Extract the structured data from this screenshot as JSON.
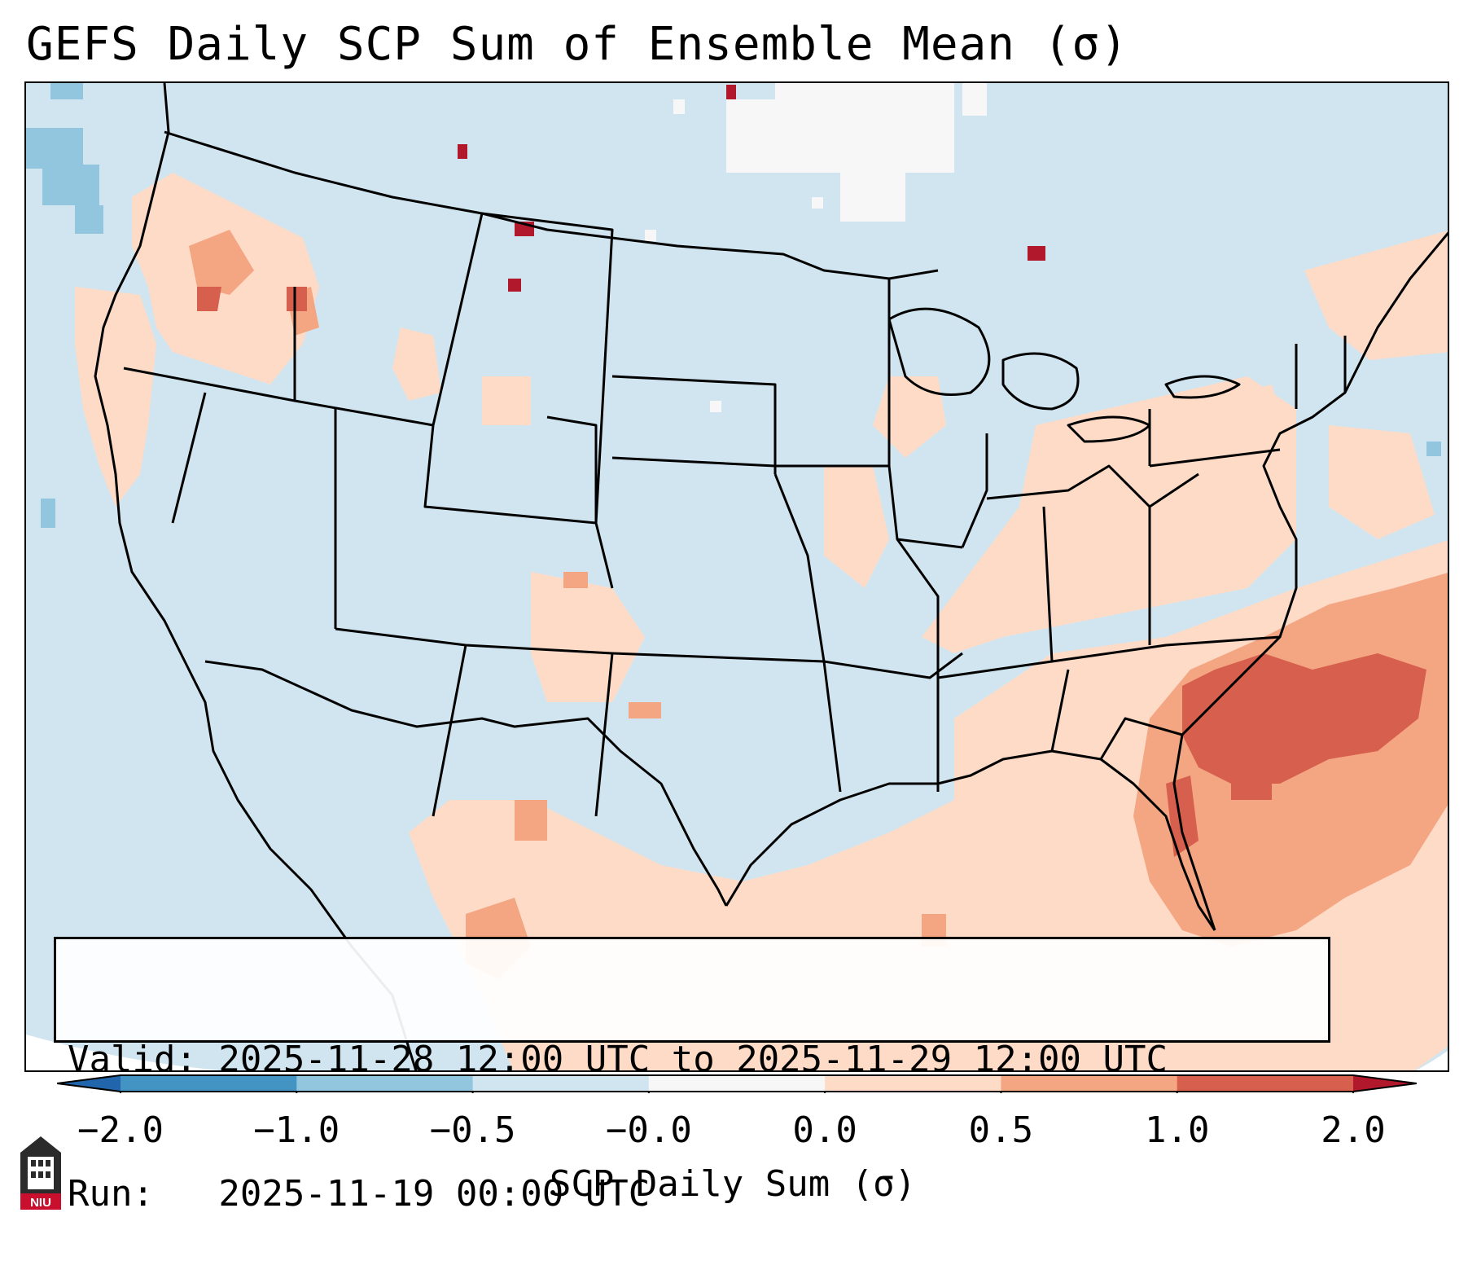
{
  "title": "GEFS Daily SCP Sum of Ensemble Mean (σ)",
  "info": {
    "valid_line": "Valid: 2025-11-28 12:00 UTC to 2025-11-29 12:00 UTC",
    "run_line": "Run:   2025-11-19 00:00 UTC"
  },
  "colorbar": {
    "label": "SCP Daily Sum (σ)",
    "ticks": [
      "−2.0",
      "−1.0",
      "−0.5",
      "−0.0",
      "0.0",
      "0.5",
      "1.0",
      "2.0"
    ],
    "colors": [
      "#4393c3",
      "#92c5de",
      "#d1e5f0",
      "#f7f7f7",
      "#fddbc7",
      "#f4a582",
      "#d6604d"
    ],
    "extend_low_color": "#2166ac",
    "extend_high_color": "#b2182b"
  },
  "map": {
    "background_color": "#d1e5f0",
    "region": "Contiguous United States",
    "logo_text": "NIU"
  }
}
